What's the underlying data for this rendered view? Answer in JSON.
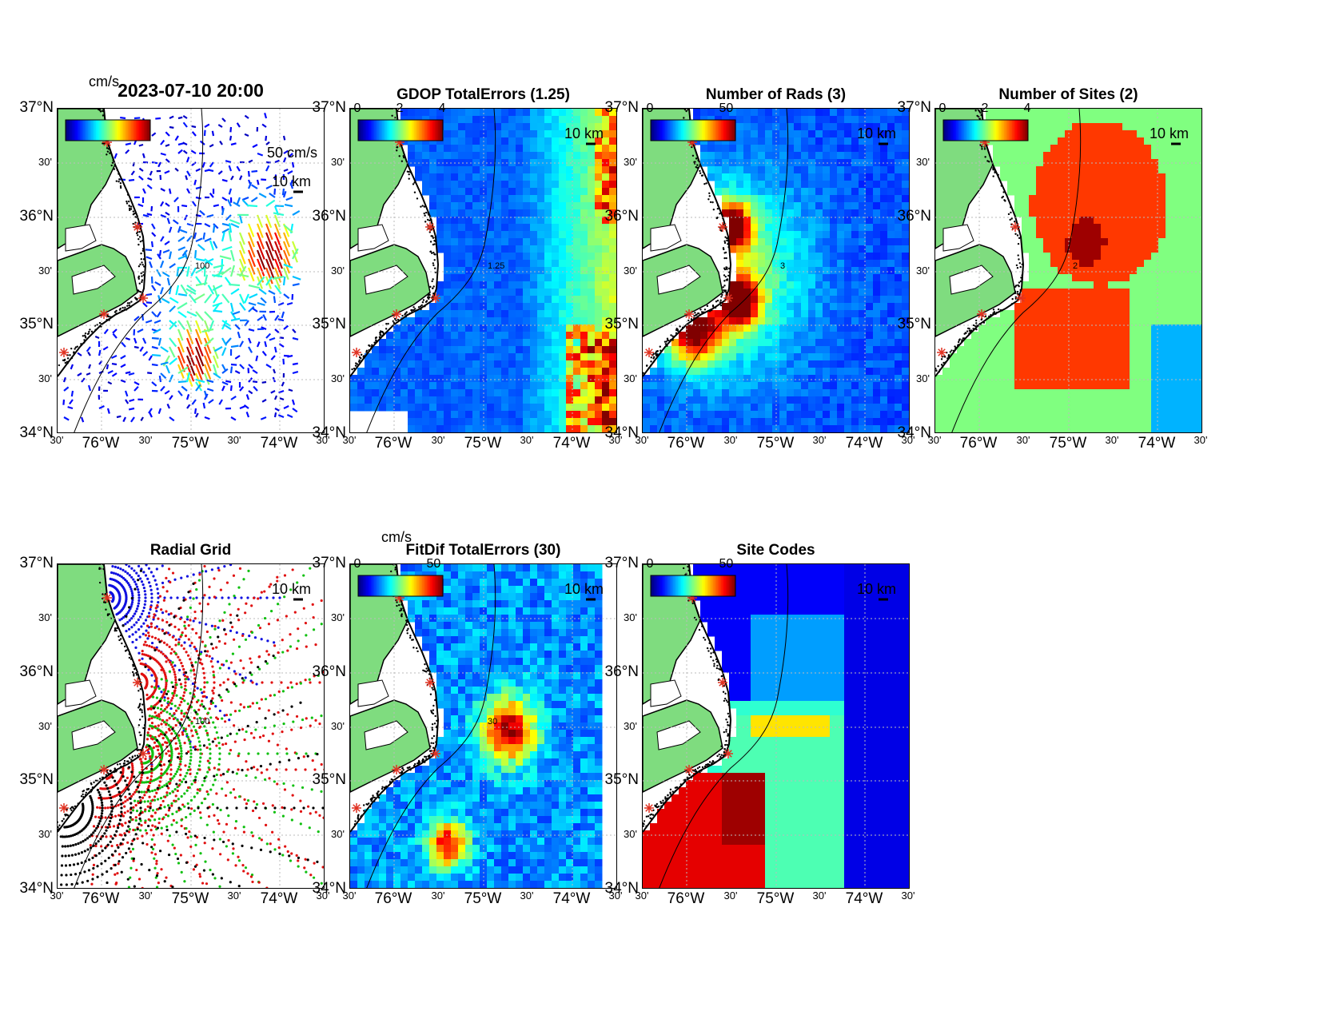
{
  "colors": {
    "land": "#7fdc7f",
    "ocean_bg": "#ffffff",
    "jet_low": "#00008f",
    "jet_high": "#800000",
    "site_marker": "#e03020"
  },
  "panels": [
    {
      "id": "velocity",
      "title": "2023-07-10 20:00",
      "colorbar_unit": "cm/s",
      "colorbar_ticks": [],
      "scale_label": "10 km",
      "vector_label": "50 cm/s",
      "contour_label": "100",
      "field": "velocity"
    },
    {
      "id": "gdop",
      "title": "GDOP TotalErrors (1.25)",
      "colorbar_unit": "",
      "colorbar_ticks": [
        "0",
        "2",
        "4"
      ],
      "scale_label": "10 km",
      "contour_label": "1.25",
      "field": "gdop"
    },
    {
      "id": "rads",
      "title": "Number of Rads (3)",
      "colorbar_unit": "",
      "colorbar_ticks": [
        "0",
        "50"
      ],
      "scale_label": "10 km",
      "contour_label": "3",
      "field": "rads"
    },
    {
      "id": "sites",
      "title": "Number of Sites (2)",
      "colorbar_unit": "",
      "colorbar_ticks": [
        "0",
        "2",
        "4"
      ],
      "scale_label": "10 km",
      "contour_label": "2",
      "field": "sites"
    },
    {
      "id": "radial",
      "title": "Radial Grid",
      "colorbar_unit": "",
      "colorbar_ticks": [],
      "scale_label": "10 km",
      "contour_label": "100",
      "field": "radial"
    },
    {
      "id": "fitdif",
      "title": "FitDif TotalErrors (30)",
      "colorbar_unit": "cm/s",
      "colorbar_ticks": [
        "0",
        "50"
      ],
      "scale_label": "10 km",
      "contour_label": "30",
      "field": "fitdif"
    },
    {
      "id": "sitecodes",
      "title": "Site Codes",
      "colorbar_unit": "",
      "colorbar_ticks": [
        "0",
        "50"
      ],
      "scale_label": "10 km",
      "contour_label": "",
      "field": "sitecodes"
    }
  ],
  "axes": {
    "lat_labels": [
      "37°N",
      "36°N",
      "35°N",
      "34°N"
    ],
    "lat_minor": [
      "30'",
      "30'",
      "30'"
    ],
    "lon_labels": [
      "76°W",
      "75°W",
      "74°W"
    ],
    "lon_minor": [
      "30'",
      "30'",
      "30'",
      "30'"
    ]
  }
}
